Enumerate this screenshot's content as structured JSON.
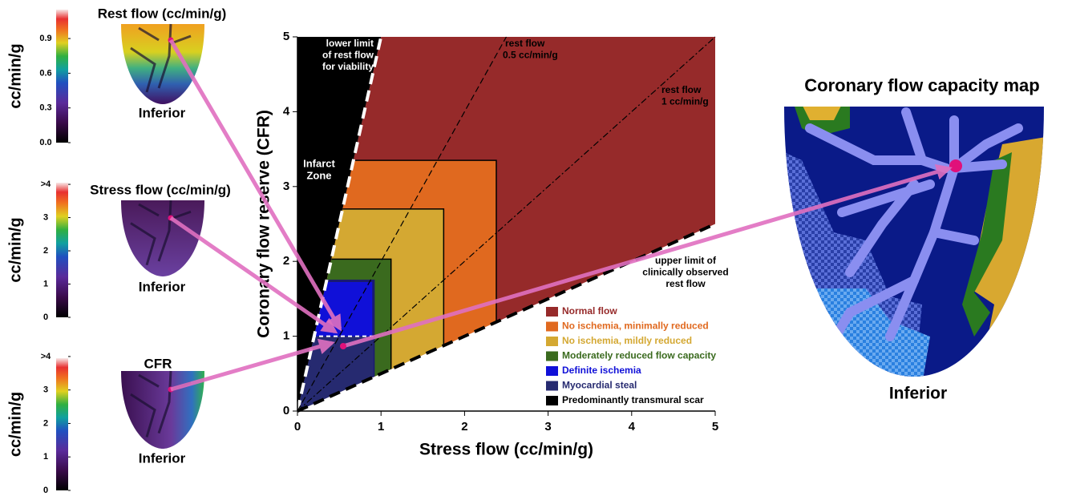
{
  "panels": [
    {
      "title": "Rest flow (cc/min/g)",
      "axis_label": "cc/min/g",
      "colorbar_lim": [
        0,
        1.15
      ],
      "ticks": [
        {
          "value": 0,
          "label": "0.0"
        },
        0.3,
        0.6,
        0.9
      ],
      "view": "Inferior"
    },
    {
      "title": "Stress flow (cc/min/g)",
      "axis_label": "cc/min/g",
      "colorbar_lim": [
        0,
        4.05
      ],
      "ticks": [
        0,
        1,
        2,
        3,
        {
          "value": 4,
          "label": ">4"
        }
      ],
      "view": "Inferior"
    },
    {
      "title": "CFR",
      "axis_label": "cc/min/g",
      "colorbar_lim": [
        0,
        3.95
      ],
      "ticks": [
        0,
        1,
        2,
        3,
        {
          "value": 4,
          "label": ">4"
        }
      ],
      "view": "Inferior"
    }
  ],
  "chart_data": {
    "type": "region",
    "x_label": "Stress flow (cc/min/g)",
    "y_label": "Coronary flow reserve (CFR)",
    "xlim": [
      0,
      5
    ],
    "ylim": [
      0,
      5
    ],
    "xticks": [
      0,
      1,
      2,
      3,
      4,
      5
    ],
    "yticks": [
      0,
      1,
      2,
      3,
      4,
      5
    ],
    "annotation": [
      "Infarct",
      "Zone"
    ],
    "lines": [
      {
        "label": [
          "lower limit",
          "of rest flow",
          "for viability"
        ],
        "rest_flow": 0.2,
        "color": "#ffffff",
        "style": "bold-dashed"
      },
      {
        "label": [
          "rest flow",
          "0.5 cc/min/g"
        ],
        "rest_flow": 0.5,
        "color": "#000000",
        "style": "dashed"
      },
      {
        "label": [
          "rest flow",
          "1 cc/min/g"
        ],
        "rest_flow": 1,
        "color": "#000000",
        "style": "dashdot"
      },
      {
        "label": [
          "upper limit of",
          "clinically observed",
          "rest flow"
        ],
        "rest_flow": 2,
        "color": "#000000",
        "style": "bold-dashed"
      }
    ],
    "regions": [
      {
        "name": "Normal flow",
        "color": "#962a2a"
      },
      {
        "name": "No ischemia, minimally reduced",
        "color": "#e0691f",
        "stress_max": 2.38,
        "cfr_max": 3.35
      },
      {
        "name": "No ischemia, mildly reduced",
        "color": "#d4a832",
        "stress_max": 1.75,
        "cfr_max": 2.7
      },
      {
        "name": "Moderately reduced flow capacity",
        "color": "#3a6a1e",
        "stress_max": 1.12,
        "cfr_max": 2.03
      },
      {
        "name": "Definite ischemia",
        "color": "#1010d8",
        "stress_max": 0.91,
        "cfr_max": 1.74
      },
      {
        "name": "Myocardial steal",
        "color": "#262a70",
        "stress_max": 0.91,
        "cfr_max": 1
      },
      {
        "name": "Predominantly transmural scar",
        "color": "#000000"
      }
    ]
  },
  "map": {
    "title": "Coronary flow capacity map",
    "view": "Inferior"
  }
}
